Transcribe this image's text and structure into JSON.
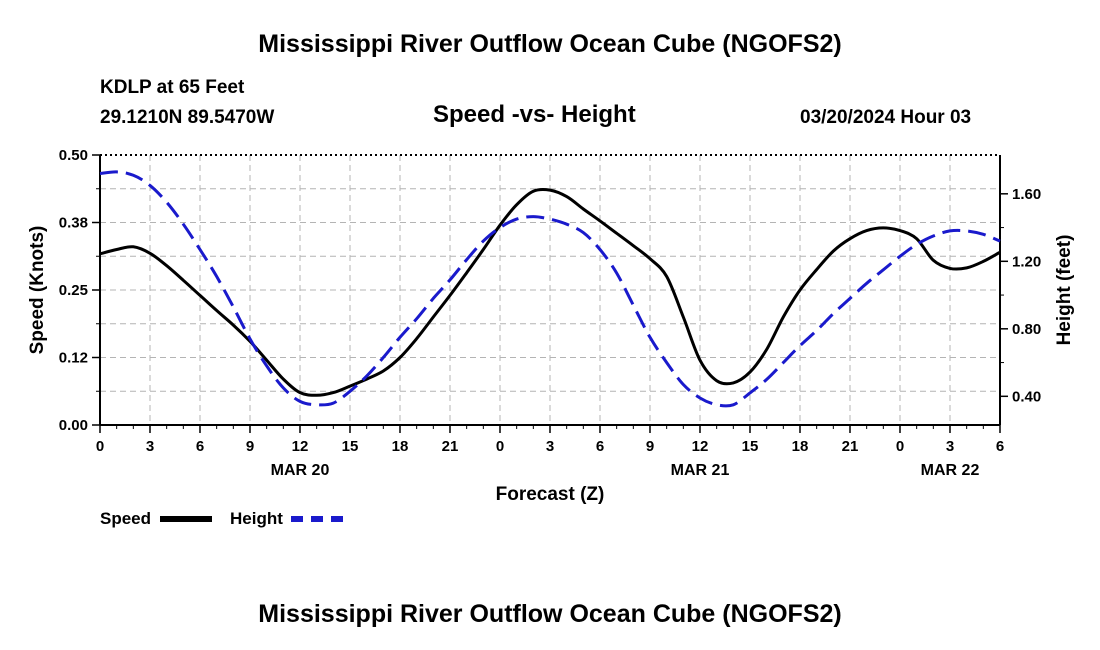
{
  "page": {
    "title_top": "Mississippi River Outflow Ocean Cube (NGOFS2)",
    "station": "KDLP at 65 Feet",
    "coords": "29.1210N  89.5470W",
    "subtitle": "Speed -vs- Height",
    "datetime": "03/20/2024 Hour 03",
    "title_bottom": "Mississippi River Outflow Ocean Cube (NGOFS2)"
  },
  "colors": {
    "speed": "#000000",
    "height": "#1a1acc",
    "grid": "#b4b4b4"
  },
  "legend": {
    "speed_label": "Speed",
    "height_label": "Height"
  },
  "chart_data": {
    "type": "line",
    "title": "Speed -vs- Height",
    "xlabel": "Forecast (Z)",
    "ylabel_left": "Speed (Knots)",
    "ylabel_right": "Height (feet)",
    "x_hours_range": [
      0,
      54
    ],
    "x_tick_hours": [
      0,
      3,
      6,
      9,
      12,
      15,
      18,
      21,
      24,
      27,
      30,
      33,
      36,
      39,
      42,
      45,
      48,
      51,
      54
    ],
    "x_tick_labels": [
      "0",
      "3",
      "6",
      "9",
      "12",
      "15",
      "18",
      "21",
      "0",
      "3",
      "6",
      "9",
      "12",
      "15",
      "18",
      "21",
      "0",
      "3",
      "6"
    ],
    "date_labels": [
      {
        "hour": 12,
        "label": "MAR 20"
      },
      {
        "hour": 36,
        "label": "MAR 21"
      },
      {
        "hour": 51,
        "label": "MAR 22"
      }
    ],
    "ylim_left": [
      0,
      0.5
    ],
    "y_ticks_left": [
      0,
      0.125,
      0.25,
      0.375,
      0.5
    ],
    "y_tick_labels_left": [
      "0.00",
      "0.12",
      "0.25",
      "0.38",
      "0.50"
    ],
    "ylim_right": [
      0.23,
      1.83
    ],
    "y_ticks_right": [
      0.4,
      0.8,
      1.2,
      1.6
    ],
    "y_tick_labels_right": [
      "0.40",
      "0.80",
      "1.20",
      "1.60"
    ],
    "grid": true,
    "series": [
      {
        "name": "Speed",
        "axis": "left",
        "style": "solid",
        "points": [
          [
            0,
            0.317
          ],
          [
            1,
            0.325
          ],
          [
            2,
            0.33
          ],
          [
            3,
            0.318
          ],
          [
            4,
            0.295
          ],
          [
            5,
            0.268
          ],
          [
            6,
            0.24
          ],
          [
            7,
            0.212
          ],
          [
            8,
            0.185
          ],
          [
            9,
            0.155
          ],
          [
            10,
            0.12
          ],
          [
            11,
            0.085
          ],
          [
            12,
            0.06
          ],
          [
            13,
            0.055
          ],
          [
            14,
            0.06
          ],
          [
            15,
            0.072
          ],
          [
            16,
            0.085
          ],
          [
            17,
            0.1
          ],
          [
            18,
            0.125
          ],
          [
            19,
            0.16
          ],
          [
            20,
            0.2
          ],
          [
            21,
            0.24
          ],
          [
            22,
            0.282
          ],
          [
            23,
            0.325
          ],
          [
            24,
            0.37
          ],
          [
            25,
            0.408
          ],
          [
            26,
            0.433
          ],
          [
            27,
            0.435
          ],
          [
            28,
            0.423
          ],
          [
            29,
            0.4
          ],
          [
            30,
            0.378
          ],
          [
            31,
            0.355
          ],
          [
            32,
            0.332
          ],
          [
            33,
            0.308
          ],
          [
            34,
            0.275
          ],
          [
            35,
            0.2
          ],
          [
            36,
            0.12
          ],
          [
            37,
            0.082
          ],
          [
            38,
            0.078
          ],
          [
            39,
            0.098
          ],
          [
            40,
            0.14
          ],
          [
            41,
            0.2
          ],
          [
            42,
            0.25
          ],
          [
            43,
            0.288
          ],
          [
            44,
            0.322
          ],
          [
            45,
            0.345
          ],
          [
            46,
            0.36
          ],
          [
            47,
            0.365
          ],
          [
            48,
            0.36
          ],
          [
            49,
            0.345
          ],
          [
            50,
            0.305
          ],
          [
            51,
            0.29
          ],
          [
            52,
            0.291
          ],
          [
            53,
            0.303
          ],
          [
            54,
            0.32
          ]
        ]
      },
      {
        "name": "Height",
        "axis": "right",
        "style": "dashed",
        "points": [
          [
            0,
            1.72
          ],
          [
            1,
            1.73
          ],
          [
            2,
            1.71
          ],
          [
            3,
            1.65
          ],
          [
            4,
            1.55
          ],
          [
            5,
            1.42
          ],
          [
            6,
            1.27
          ],
          [
            7,
            1.11
          ],
          [
            8,
            0.93
          ],
          [
            9,
            0.74
          ],
          [
            10,
            0.58
          ],
          [
            11,
            0.45
          ],
          [
            12,
            0.37
          ],
          [
            13,
            0.35
          ],
          [
            14,
            0.36
          ],
          [
            15,
            0.43
          ],
          [
            16,
            0.52
          ],
          [
            17,
            0.63
          ],
          [
            18,
            0.75
          ],
          [
            19,
            0.86
          ],
          [
            20,
            0.98
          ],
          [
            21,
            1.09
          ],
          [
            22,
            1.21
          ],
          [
            23,
            1.32
          ],
          [
            24,
            1.4
          ],
          [
            25,
            1.45
          ],
          [
            26,
            1.465
          ],
          [
            27,
            1.45
          ],
          [
            28,
            1.42
          ],
          [
            29,
            1.37
          ],
          [
            30,
            1.27
          ],
          [
            31,
            1.13
          ],
          [
            32,
            0.94
          ],
          [
            33,
            0.75
          ],
          [
            34,
            0.6
          ],
          [
            35,
            0.47
          ],
          [
            36,
            0.39
          ],
          [
            37,
            0.35
          ],
          [
            38,
            0.35
          ],
          [
            39,
            0.42
          ],
          [
            40,
            0.5
          ],
          [
            41,
            0.6
          ],
          [
            42,
            0.7
          ],
          [
            43,
            0.79
          ],
          [
            44,
            0.89
          ],
          [
            45,
            0.98
          ],
          [
            46,
            1.07
          ],
          [
            47,
            1.15
          ],
          [
            48,
            1.23
          ],
          [
            49,
            1.3
          ],
          [
            50,
            1.35
          ],
          [
            51,
            1.38
          ],
          [
            52,
            1.38
          ],
          [
            53,
            1.36
          ],
          [
            54,
            1.32
          ]
        ]
      }
    ]
  }
}
